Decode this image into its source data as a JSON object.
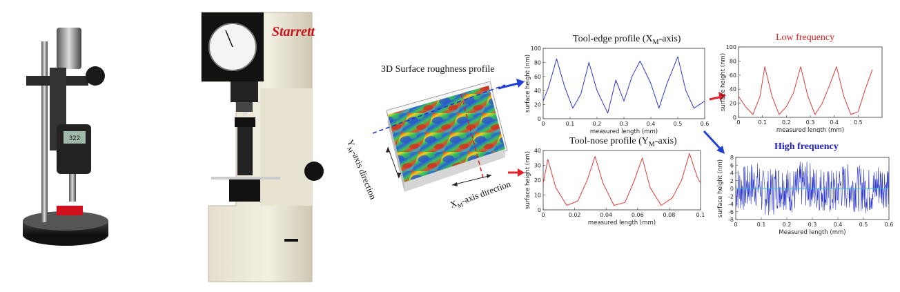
{
  "instruments": {
    "brand": "Starrett",
    "digital_gauge_readout": "322"
  },
  "surface3d": {
    "title": "3D Surface roughness profile",
    "x_dir": "X",
    "x_sub": "M",
    "x_tail": "-axis direction",
    "y_dir": "Y",
    "y_sub": "M",
    "y_tail": "-axis direction"
  },
  "colors": {
    "arrow_blue": "#1f3fd6",
    "arrow_red": "#e0202a",
    "trace_blue": "#2a35c9",
    "trace_red": "#e23a3a",
    "title_red": "#e02020",
    "title_blue": "#2020c8"
  },
  "chart_data": [
    {
      "type": "line",
      "title_main": "Tool-edge profile (X",
      "title_sub": "M",
      "title_tail": "-axis)",
      "xlabel": "measured length (mm)",
      "ylabel": "surface height (nm)",
      "xlim": [
        0,
        0.6
      ],
      "ylim": [
        0,
        100
      ],
      "xticks": [
        "0",
        "0.1",
        "0.2",
        "0.3",
        "0.4",
        "0.5",
        "0.6"
      ],
      "yticks": [
        "0",
        "20",
        "40",
        "60",
        "80",
        "100"
      ],
      "series_color": "trace_blue",
      "x": [
        0,
        0.02,
        0.05,
        0.08,
        0.11,
        0.14,
        0.17,
        0.2,
        0.24,
        0.27,
        0.3,
        0.33,
        0.36,
        0.4,
        0.43,
        0.46,
        0.5,
        0.53,
        0.56,
        0.6
      ],
      "y": [
        25,
        45,
        85,
        45,
        15,
        35,
        80,
        40,
        8,
        55,
        25,
        60,
        82,
        50,
        15,
        50,
        88,
        40,
        15,
        25
      ]
    },
    {
      "type": "line",
      "title_main": "Low frequency",
      "xlabel": "measured length (mm)",
      "ylabel": "surface height (nm)",
      "xlim": [
        0,
        0.6
      ],
      "ylim": [
        0,
        100
      ],
      "xticks": [
        "0",
        "0.1",
        "0.2",
        "0.3",
        "0.4",
        "0.5"
      ],
      "yticks": [
        "0",
        "20",
        "40",
        "60",
        "80",
        "100"
      ],
      "series_color": "trace_red",
      "x": [
        0,
        0.03,
        0.06,
        0.09,
        0.11,
        0.14,
        0.17,
        0.2,
        0.23,
        0.26,
        0.29,
        0.32,
        0.35,
        0.38,
        0.41,
        0.44,
        0.47,
        0.5,
        0.53,
        0.56
      ],
      "y": [
        30,
        15,
        4,
        30,
        72,
        30,
        4,
        15,
        35,
        72,
        30,
        4,
        20,
        45,
        72,
        30,
        4,
        8,
        40,
        68
      ]
    },
    {
      "type": "line",
      "title_main": "Tool-nose profile (Y",
      "title_sub": "M",
      "title_tail": "-axis)",
      "xlabel": "measured length (mm)",
      "ylabel": "surface height (nm)",
      "xlim": [
        0,
        0.1
      ],
      "ylim": [
        0,
        40
      ],
      "xticks": [
        "0",
        "0.02",
        "0.04",
        "0.06",
        "0.08",
        "0.1"
      ],
      "yticks": [
        "0",
        "10",
        "20",
        "30",
        "40"
      ],
      "series_color": "trace_red",
      "x": [
        0,
        0.003,
        0.008,
        0.015,
        0.022,
        0.028,
        0.033,
        0.038,
        0.045,
        0.052,
        0.058,
        0.063,
        0.068,
        0.075,
        0.082,
        0.088,
        0.093,
        0.098,
        0.1
      ],
      "y": [
        18,
        34,
        15,
        3,
        6,
        20,
        36,
        18,
        3,
        5,
        20,
        35,
        15,
        3,
        8,
        20,
        38,
        22,
        18
      ]
    },
    {
      "type": "line",
      "title_main": "High frequency",
      "xlabel": "Measured length (mm)",
      "ylabel": "surface height (nm)",
      "xlim": [
        0,
        0.6
      ],
      "ylim": [
        -8,
        8
      ],
      "xticks": [
        "0",
        "0.1",
        "0.2",
        "0.3",
        "0.4",
        "0.5",
        "0.6"
      ],
      "yticks": [
        "-8",
        "-6",
        "-4",
        "-2",
        "0",
        "2",
        "4",
        "6",
        "8"
      ],
      "series_color": "trace_blue",
      "x": [
        0,
        0.05,
        0.1,
        0.15,
        0.2,
        0.25,
        0.3,
        0.35,
        0.4,
        0.45,
        0.5,
        0.55,
        0.6
      ],
      "y": [
        0,
        1,
        -1,
        0.5,
        -0.5,
        1,
        0,
        -1,
        0.5,
        0,
        -0.5,
        1,
        0
      ]
    }
  ]
}
